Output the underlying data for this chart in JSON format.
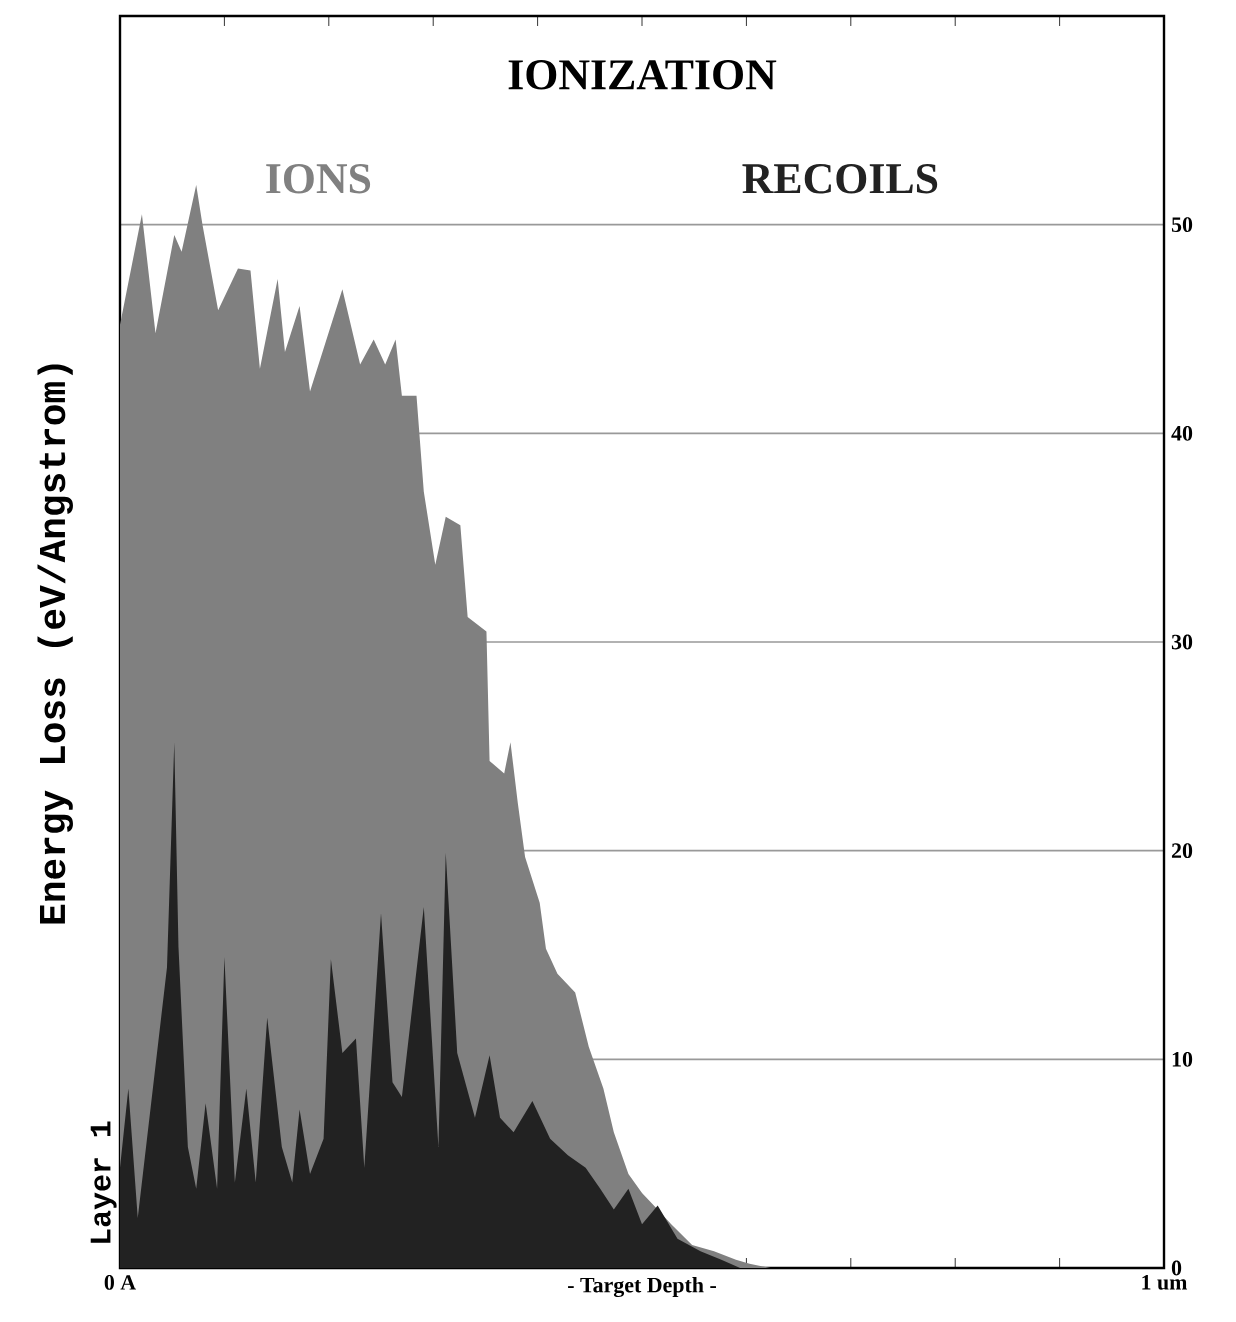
{
  "chart_data": {
    "type": "area",
    "title": "IONIZATION",
    "xlabel": "- Target Depth -",
    "ylabel": "Energy Loss (eV/Angstrom)",
    "annotations": [
      "Layer 1"
    ],
    "xlim": [
      0,
      1
    ],
    "ylim": [
      0,
      60
    ],
    "xticks": [
      {
        "value": 0,
        "label": "0 A"
      },
      {
        "value": 0.1,
        "label": null
      },
      {
        "value": 0.2,
        "label": null
      },
      {
        "value": 0.3,
        "label": null
      },
      {
        "value": 0.4,
        "label": null
      },
      {
        "value": 0.5,
        "label": null
      },
      {
        "value": 0.6,
        "label": null
      },
      {
        "value": 0.7,
        "label": null
      },
      {
        "value": 0.8,
        "label": null
      },
      {
        "value": 0.9,
        "label": null
      },
      {
        "value": 1,
        "label": "1 um"
      }
    ],
    "yticks": [
      0,
      10,
      20,
      30,
      40,
      50
    ],
    "grid": "y",
    "legend": "top",
    "series": [
      {
        "name": "IONS",
        "color": "#808080",
        "x": [
          0.0,
          0.021,
          0.034,
          0.052,
          0.059,
          0.073,
          0.079,
          0.094,
          0.113,
          0.125,
          0.134,
          0.151,
          0.158,
          0.172,
          0.182,
          0.213,
          0.23,
          0.243,
          0.254,
          0.264,
          0.27,
          0.284,
          0.291,
          0.302,
          0.312,
          0.326,
          0.333,
          0.351,
          0.354,
          0.368,
          0.374,
          0.381,
          0.388,
          0.402,
          0.408,
          0.419,
          0.436,
          0.449,
          0.463,
          0.473,
          0.487,
          0.5,
          0.515,
          0.528,
          0.548,
          0.569,
          0.59,
          0.603,
          0.623,
          1.0
        ],
        "values": [
          45.2,
          50.5,
          44.8,
          49.5,
          48.7,
          51.9,
          50.0,
          45.9,
          47.9,
          47.8,
          43.1,
          47.4,
          43.9,
          46.1,
          42.0,
          46.9,
          43.3,
          44.5,
          43.3,
          44.5,
          41.8,
          41.8,
          37.2,
          33.7,
          36.0,
          35.6,
          31.2,
          30.5,
          24.3,
          23.7,
          25.2,
          22.3,
          19.7,
          17.5,
          15.3,
          14.1,
          13.2,
          10.6,
          8.6,
          6.5,
          4.5,
          3.6,
          2.8,
          2.1,
          1.1,
          0.8,
          0.4,
          0.2,
          0,
          0
        ]
      },
      {
        "name": "RECOILS",
        "color": "#222222",
        "x": [
          0.0,
          0.008,
          0.017,
          0.045,
          0.052,
          0.056,
          0.065,
          0.073,
          0.082,
          0.093,
          0.1,
          0.11,
          0.121,
          0.13,
          0.141,
          0.155,
          0.165,
          0.172,
          0.182,
          0.195,
          0.202,
          0.213,
          0.226,
          0.234,
          0.25,
          0.261,
          0.27,
          0.291,
          0.305,
          0.312,
          0.323,
          0.34,
          0.354,
          0.364,
          0.377,
          0.395,
          0.412,
          0.429,
          0.446,
          0.46,
          0.473,
          0.487,
          0.5,
          0.515,
          0.534,
          0.556,
          0.576,
          0.594,
          1.0
        ],
        "values": [
          4.8,
          8.6,
          2.4,
          14.4,
          25.2,
          15.4,
          5.8,
          3.8,
          7.9,
          3.8,
          14.9,
          4.1,
          8.6,
          4.1,
          12.0,
          5.8,
          4.1,
          7.6,
          4.5,
          6.2,
          14.8,
          10.3,
          11.0,
          4.8,
          17.0,
          8.9,
          8.2,
          17.3,
          5.8,
          19.9,
          10.3,
          7.2,
          10.2,
          7.2,
          6.5,
          8.0,
          6.2,
          5.4,
          4.8,
          3.8,
          2.8,
          3.8,
          2.1,
          3.0,
          1.4,
          0.8,
          0.4,
          0,
          0
        ]
      }
    ]
  }
}
